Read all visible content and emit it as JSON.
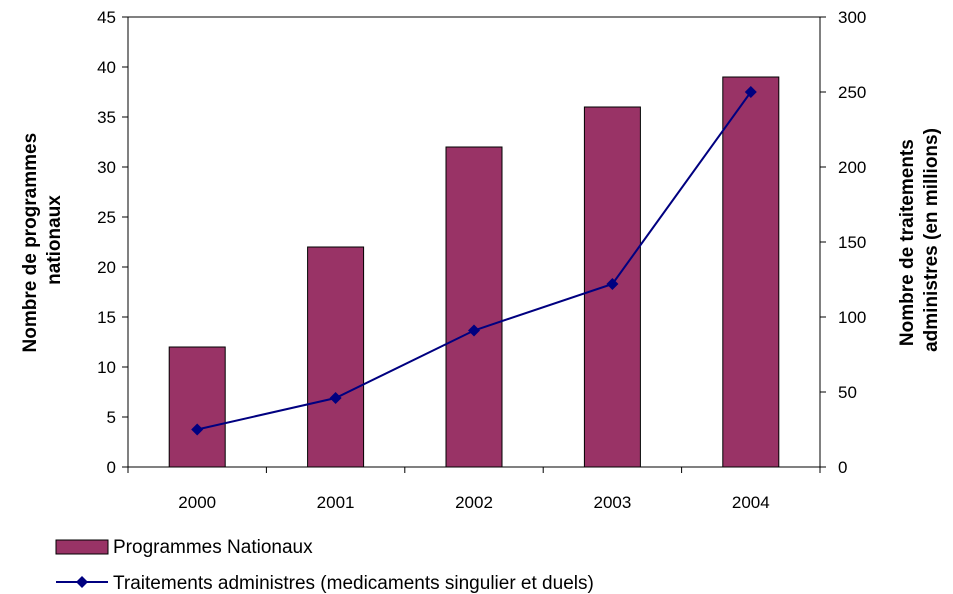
{
  "chart_data": {
    "type": "bar",
    "categories": [
      "2000",
      "2001",
      "2002",
      "2003",
      "2004"
    ],
    "series": [
      {
        "name": "Programmes Nationaux",
        "type": "bar",
        "axis": "left",
        "color": "#993366",
        "values": [
          12,
          22,
          32,
          36,
          39
        ]
      },
      {
        "name": "Traitements administres (medicaments singulier et duels)",
        "type": "line",
        "axis": "right",
        "color": "#000080",
        "marker": "diamond",
        "values": [
          25,
          46,
          91,
          122,
          250
        ]
      }
    ],
    "y_left": {
      "label_lines": [
        "Nombre de programmes",
        "nationaux"
      ],
      "range": [
        0,
        45
      ],
      "ticks": [
        0,
        5,
        10,
        15,
        20,
        25,
        30,
        35,
        40,
        45
      ]
    },
    "y_right": {
      "label_lines": [
        "Nombre de traitements",
        "administres (en millions)"
      ],
      "range": [
        0,
        300
      ],
      "ticks": [
        0,
        50,
        100,
        150,
        200,
        250,
        300
      ]
    },
    "grid": false,
    "legend_position": "bottom-left"
  }
}
